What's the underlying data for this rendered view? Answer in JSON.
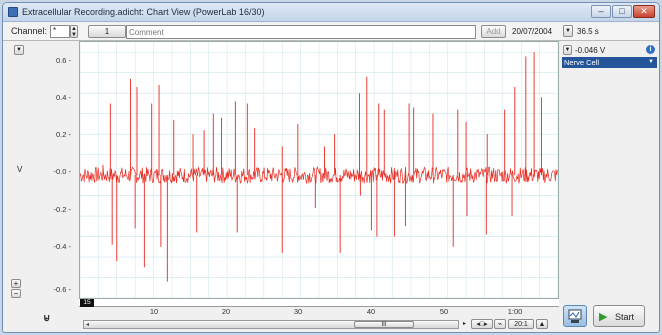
{
  "window": {
    "title": "Extracellular Recording.adicht: Chart View (PowerLab 16/30)"
  },
  "toolbar": {
    "channel_label": "Channel:",
    "channel_value": "*",
    "comment_number": "1",
    "comment_placeholder": "Comment",
    "add_label": "Add",
    "date": "20/07/2004",
    "duration": "36.5 s"
  },
  "axis": {
    "y_unit": "V",
    "y_ticks": [
      "0.6 -",
      "0.4 -",
      "0.2 -",
      "-0.0 -",
      "-0.2 -",
      "-0.4 -",
      "-0.6 -"
    ],
    "x_ticks": [
      "10",
      "20",
      "30",
      "40",
      "50",
      "1:00"
    ],
    "x_start_marker": "15"
  },
  "right_panel": {
    "reading": "-0.046 V",
    "channel_name": "Nerve Cell"
  },
  "bottom": {
    "zoom": "20:1",
    "start_label": "Start",
    "scroll_thumb": "III"
  },
  "colors": {
    "trace": "#e8291f",
    "grid": "#c9e6ea",
    "selection": "#24559a"
  },
  "chart_data": {
    "type": "line",
    "title": "",
    "xlabel": "",
    "ylabel": "V",
    "xlim": [
      5,
      57
    ],
    "ylim": [
      -0.6,
      0.65
    ],
    "grid": true,
    "series": [
      {
        "name": "",
        "baseline_noise": 0.04,
        "spikes_up": [
          [
            7.5,
            0.05
          ],
          [
            8.3,
            0.35
          ],
          [
            10.5,
            0.47
          ],
          [
            11.2,
            0.43
          ],
          [
            12.8,
            0.35
          ],
          [
            13.6,
            0.44
          ],
          [
            15.2,
            0.27
          ],
          [
            17.3,
            0.2
          ],
          [
            18.5,
            0.22
          ],
          [
            19.5,
            0.3
          ],
          [
            20.4,
            0.28
          ],
          [
            21.9,
            0.36
          ],
          [
            23.2,
            0.35
          ],
          [
            24.0,
            0.23
          ],
          [
            27.0,
            0.14
          ],
          [
            28.7,
            0.25
          ],
          [
            31.6,
            0.14
          ],
          [
            32.7,
            0.2
          ],
          [
            35.4,
            0.4
          ],
          [
            36.2,
            0.48
          ],
          [
            37.5,
            0.35
          ],
          [
            38.1,
            0.32
          ],
          [
            40.8,
            0.35
          ],
          [
            41.3,
            0.33
          ],
          [
            43.4,
            0.3
          ],
          [
            46.1,
            0.32
          ],
          [
            47.0,
            0.26
          ],
          [
            49.3,
            0.2
          ],
          [
            51.2,
            0.32
          ],
          [
            52.3,
            0.43
          ],
          [
            53.5,
            0.58
          ],
          [
            54.4,
            0.6
          ],
          [
            55.2,
            0.38
          ]
        ],
        "spikes_down": [
          [
            8.5,
            -0.34
          ],
          [
            9.0,
            -0.42
          ],
          [
            11.0,
            -0.26
          ],
          [
            12.0,
            -0.45
          ],
          [
            13.8,
            -0.35
          ],
          [
            14.5,
            -0.52
          ],
          [
            17.7,
            -0.28
          ],
          [
            22.1,
            -0.28
          ],
          [
            27.0,
            -0.38
          ],
          [
            30.6,
            -0.16
          ],
          [
            33.3,
            -0.38
          ],
          [
            35.5,
            -0.1
          ],
          [
            36.7,
            -0.27
          ],
          [
            37.3,
            -0.3
          ],
          [
            39.2,
            -0.3
          ],
          [
            40.4,
            -0.25
          ],
          [
            45.6,
            -0.35
          ],
          [
            47.1,
            -0.2
          ],
          [
            49.2,
            -0.29
          ],
          [
            52.0,
            -0.2
          ]
        ]
      }
    ]
  }
}
